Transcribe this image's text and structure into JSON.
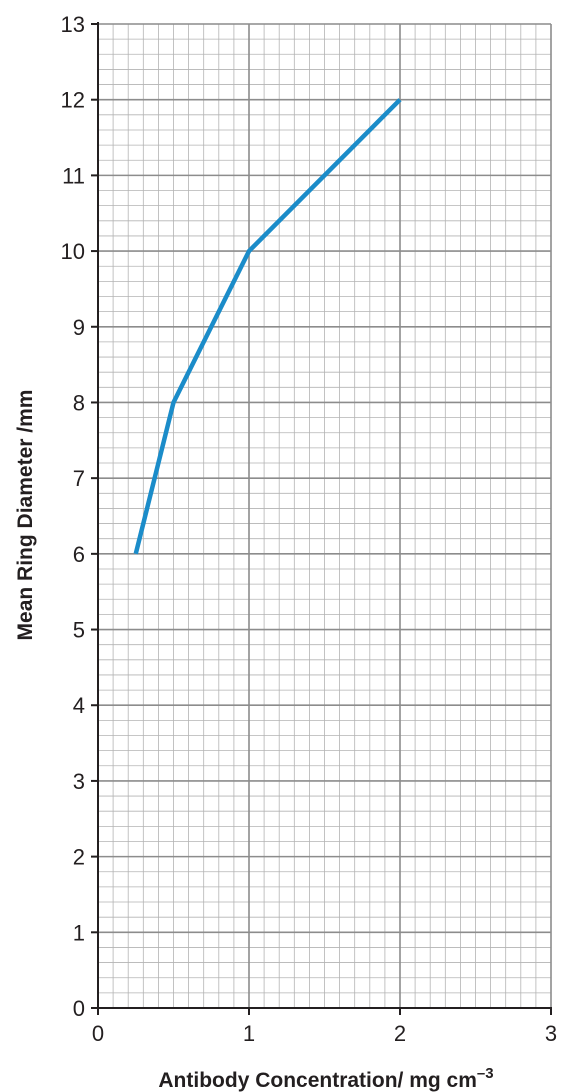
{
  "chart_data": {
    "type": "line",
    "xlabel": "Antibody Concentration/ mg cm",
    "xlabel_superscript": "–3",
    "ylabel": "Mean Ring Diameter /mm",
    "xlim": [
      0,
      3
    ],
    "ylim": [
      0,
      13
    ],
    "x_ticks": [
      "0",
      "1",
      "2",
      "3"
    ],
    "y_ticks": [
      "0",
      "1",
      "2",
      "3",
      "4",
      "5",
      "6",
      "7",
      "8",
      "9",
      "10",
      "11",
      "12",
      "13"
    ],
    "grid": true,
    "series": [
      {
        "color": "#1b8cc9",
        "x": [
          0.25,
          0.5,
          1,
          2
        ],
        "y": [
          6,
          8,
          10,
          12
        ]
      }
    ]
  }
}
